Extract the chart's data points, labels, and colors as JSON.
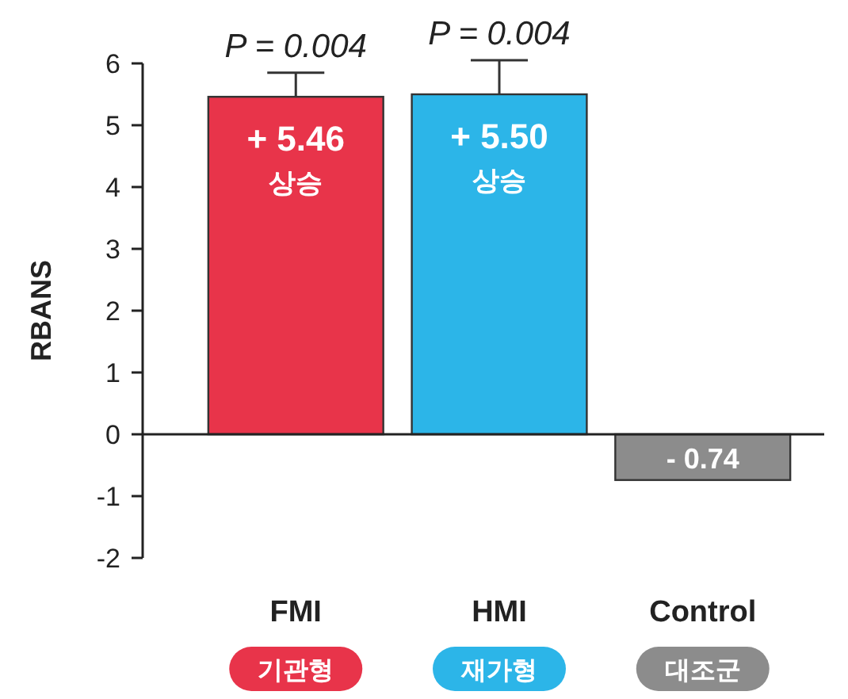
{
  "chart_data": {
    "type": "bar",
    "ylabel": "RBANS",
    "categories": [
      "FMI",
      "HMI",
      "Control"
    ],
    "values": [
      5.46,
      5.5,
      -0.74
    ],
    "colors": [
      "#e8344a",
      "#2cb5e8",
      "#8c8c8c"
    ],
    "errors": [
      [
        5.46,
        5.85
      ],
      [
        5.5,
        6.05
      ],
      null
    ],
    "value_labels": [
      "+ 5.46\n상승",
      "+ 5.50\n상승",
      "- 0.74"
    ],
    "annotations": [
      {
        "text": "P = 0.004",
        "x": "FMI",
        "y": 5.85
      },
      {
        "text": "P = 0.004",
        "x": "HMI",
        "y": 6.05
      },
      "기관형",
      "재가형",
      "대조군"
    ],
    "ylim": [
      -2,
      6
    ],
    "yticks": [
      -2,
      -1,
      0,
      1,
      2,
      3,
      4,
      5,
      6
    ]
  }
}
